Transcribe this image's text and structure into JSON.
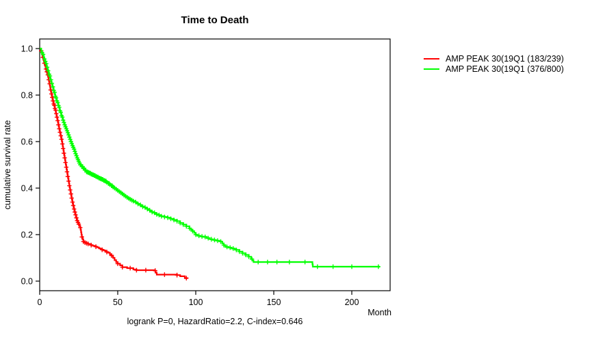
{
  "chart_data": {
    "type": "line",
    "subtype": "kaplan-meier-step",
    "title": "Time to Death",
    "xlabel": "Month",
    "ylabel": "cumulative survival rate",
    "footer": "logrank P=0, HazardRatio=2.2, C-index=0.646",
    "xlim": [
      0,
      225
    ],
    "ylim": [
      0.0,
      1.0
    ],
    "xticks": [
      0,
      50,
      100,
      150,
      200
    ],
    "yticks": [
      0.0,
      0.2,
      0.4,
      0.6,
      0.8,
      1.0
    ],
    "grid": false,
    "legend_position": "right-outside",
    "series": [
      {
        "name": "AMP PEAK 30(19Q1 (183/239)",
        "color": "#ff0000",
        "events_total": "183/239",
        "steps": [
          [
            0,
            1.0
          ],
          [
            0.7,
            0.99
          ],
          [
            1.5,
            0.975
          ],
          [
            2,
            0.962
          ],
          [
            2.5,
            0.95
          ],
          [
            3,
            0.937
          ],
          [
            3.5,
            0.925
          ],
          [
            4,
            0.912
          ],
          [
            4.5,
            0.9
          ],
          [
            5,
            0.887
          ],
          [
            5.5,
            0.875
          ],
          [
            6,
            0.857
          ],
          [
            6.5,
            0.84
          ],
          [
            7,
            0.822
          ],
          [
            7.5,
            0.805
          ],
          [
            8,
            0.79
          ],
          [
            8.5,
            0.775
          ],
          [
            9,
            0.762
          ],
          [
            9.5,
            0.75
          ],
          [
            10,
            0.735
          ],
          [
            10.5,
            0.72
          ],
          [
            11,
            0.705
          ],
          [
            11.5,
            0.69
          ],
          [
            12,
            0.672
          ],
          [
            12.5,
            0.655
          ],
          [
            13,
            0.64
          ],
          [
            13.5,
            0.625
          ],
          [
            14,
            0.61
          ],
          [
            14.5,
            0.59
          ],
          [
            15,
            0.57
          ],
          [
            15.5,
            0.55
          ],
          [
            16,
            0.53
          ],
          [
            16.5,
            0.51
          ],
          [
            17,
            0.49
          ],
          [
            17.5,
            0.47
          ],
          [
            18,
            0.45
          ],
          [
            18.5,
            0.43
          ],
          [
            19,
            0.41
          ],
          [
            19.5,
            0.392
          ],
          [
            20,
            0.375
          ],
          [
            20.5,
            0.357
          ],
          [
            21,
            0.34
          ],
          [
            21.5,
            0.325
          ],
          [
            22,
            0.31
          ],
          [
            22.5,
            0.297
          ],
          [
            23,
            0.285
          ],
          [
            23.5,
            0.272
          ],
          [
            24,
            0.26
          ],
          [
            24.5,
            0.252
          ],
          [
            25,
            0.245
          ],
          [
            25.5,
            0.237
          ],
          [
            26,
            0.23
          ],
          [
            26.5,
            0.21
          ],
          [
            27,
            0.19
          ],
          [
            27.5,
            0.18
          ],
          [
            28,
            0.17
          ],
          [
            29,
            0.166
          ],
          [
            30,
            0.163
          ],
          [
            31,
            0.16
          ],
          [
            32,
            0.158
          ],
          [
            33,
            0.155
          ],
          [
            34,
            0.152
          ],
          [
            35,
            0.15
          ],
          [
            36,
            0.148
          ],
          [
            37,
            0.145
          ],
          [
            38,
            0.141
          ],
          [
            39,
            0.138
          ],
          [
            40,
            0.135
          ],
          [
            41,
            0.132
          ],
          [
            42,
            0.128
          ],
          [
            43,
            0.125
          ],
          [
            44,
            0.122
          ],
          [
            45,
            0.115
          ],
          [
            46,
            0.11
          ],
          [
            47,
            0.1
          ],
          [
            48,
            0.09
          ],
          [
            49,
            0.082
          ],
          [
            50,
            0.075
          ],
          [
            51.5,
            0.068
          ],
          [
            53,
            0.06
          ],
          [
            56,
            0.056
          ],
          [
            60,
            0.05
          ],
          [
            62,
            0.047
          ],
          [
            73.5,
            0.045
          ],
          [
            75,
            0.028
          ],
          [
            88,
            0.026
          ],
          [
            90,
            0.021
          ],
          [
            93,
            0.013
          ],
          [
            95,
            0.013
          ]
        ],
        "censors": [
          1,
          2,
          3,
          4,
          4.6,
          5.2,
          5.8,
          6.4,
          7,
          7.5,
          8,
          8.5,
          9,
          9.4,
          9.8,
          10.2,
          10.6,
          11,
          11.5,
          12,
          12.5,
          13,
          13.5,
          14,
          14.5,
          15,
          15.5,
          16,
          16.5,
          17,
          17.5,
          18,
          18.5,
          19,
          19.5,
          20,
          20.5,
          21,
          21.5,
          22,
          22.5,
          23,
          23.5,
          24,
          24.5,
          25,
          26,
          27,
          28,
          29,
          30,
          31,
          33,
          36,
          40,
          43,
          46,
          50,
          53,
          58,
          62,
          68,
          74,
          80,
          88,
          94
        ]
      },
      {
        "name": "AMP PEAK 30(19Q1 (376/800)",
        "color": "#00ff00",
        "events_total": "376/800",
        "steps": [
          [
            0,
            1.0
          ],
          [
            1,
            0.99
          ],
          [
            2,
            0.975
          ],
          [
            3,
            0.955
          ],
          [
            4,
            0.935
          ],
          [
            5,
            0.912
          ],
          [
            6,
            0.89
          ],
          [
            7,
            0.866
          ],
          [
            8,
            0.843
          ],
          [
            9,
            0.82
          ],
          [
            10,
            0.795
          ],
          [
            11,
            0.775
          ],
          [
            12,
            0.755
          ],
          [
            13,
            0.733
          ],
          [
            14,
            0.712
          ],
          [
            15,
            0.692
          ],
          [
            16,
            0.672
          ],
          [
            17,
            0.655
          ],
          [
            18,
            0.638
          ],
          [
            19,
            0.619
          ],
          [
            20,
            0.6
          ],
          [
            21,
            0.583
          ],
          [
            22,
            0.567
          ],
          [
            23,
            0.548
          ],
          [
            24,
            0.53
          ],
          [
            25,
            0.515
          ],
          [
            26,
            0.5
          ],
          [
            27,
            0.492
          ],
          [
            28,
            0.485
          ],
          [
            29,
            0.477
          ],
          [
            30,
            0.47
          ],
          [
            31,
            0.467
          ],
          [
            32,
            0.464
          ],
          [
            33,
            0.46
          ],
          [
            34,
            0.457
          ],
          [
            35,
            0.454
          ],
          [
            36,
            0.45
          ],
          [
            37,
            0.447
          ],
          [
            38,
            0.443
          ],
          [
            39,
            0.44
          ],
          [
            40,
            0.437
          ],
          [
            41,
            0.433
          ],
          [
            42,
            0.43
          ],
          [
            43,
            0.425
          ],
          [
            44,
            0.42
          ],
          [
            45,
            0.415
          ],
          [
            46,
            0.41
          ],
          [
            47,
            0.405
          ],
          [
            48,
            0.4
          ],
          [
            49,
            0.395
          ],
          [
            50,
            0.39
          ],
          [
            51,
            0.385
          ],
          [
            52,
            0.38
          ],
          [
            53,
            0.375
          ],
          [
            54,
            0.37
          ],
          [
            55,
            0.365
          ],
          [
            56,
            0.36
          ],
          [
            57,
            0.356
          ],
          [
            58,
            0.352
          ],
          [
            59,
            0.348
          ],
          [
            60,
            0.344
          ],
          [
            61,
            0.34
          ],
          [
            62,
            0.336
          ],
          [
            63,
            0.332
          ],
          [
            64,
            0.328
          ],
          [
            65,
            0.324
          ],
          [
            66,
            0.32
          ],
          [
            67,
            0.317
          ],
          [
            68,
            0.313
          ],
          [
            69,
            0.31
          ],
          [
            70,
            0.305
          ],
          [
            71,
            0.3
          ],
          [
            72,
            0.297
          ],
          [
            73,
            0.294
          ],
          [
            74,
            0.29
          ],
          [
            75,
            0.287
          ],
          [
            76,
            0.284
          ],
          [
            77,
            0.281
          ],
          [
            78,
            0.279
          ],
          [
            80,
            0.276
          ],
          [
            82,
            0.273
          ],
          [
            84,
            0.268
          ],
          [
            86,
            0.263
          ],
          [
            88,
            0.258
          ],
          [
            90,
            0.25
          ],
          [
            92,
            0.243
          ],
          [
            94,
            0.236
          ],
          [
            96,
            0.227
          ],
          [
            98,
            0.215
          ],
          [
            100,
            0.2
          ],
          [
            101,
            0.195
          ],
          [
            103,
            0.192
          ],
          [
            105,
            0.19
          ],
          [
            107,
            0.185
          ],
          [
            109,
            0.18
          ],
          [
            111,
            0.177
          ],
          [
            113,
            0.174
          ],
          [
            115,
            0.172
          ],
          [
            116,
            0.17
          ],
          [
            118,
            0.155
          ],
          [
            119,
            0.147
          ],
          [
            121,
            0.144
          ],
          [
            123,
            0.14
          ],
          [
            125,
            0.137
          ],
          [
            126,
            0.134
          ],
          [
            128,
            0.127
          ],
          [
            130,
            0.12
          ],
          [
            132,
            0.113
          ],
          [
            134,
            0.105
          ],
          [
            135.5,
            0.095
          ],
          [
            137,
            0.082
          ],
          [
            174.6,
            0.082
          ],
          [
            175,
            0.062
          ],
          [
            218,
            0.062
          ]
        ],
        "censors": [
          1.5,
          2.2,
          3,
          3.6,
          4.2,
          4.8,
          5.4,
          6,
          6.6,
          7.2,
          7.8,
          8.4,
          9,
          9.5,
          10,
          10.5,
          11,
          11.5,
          12,
          12.5,
          13,
          13.5,
          14,
          14.5,
          15,
          15.5,
          16,
          16.5,
          17,
          17.5,
          18,
          18.5,
          19,
          19.5,
          20,
          20.5,
          21,
          21.5,
          22,
          22.5,
          23,
          23.5,
          24,
          24.5,
          25,
          25.5,
          26,
          26.5,
          27,
          27.5,
          28,
          28.5,
          29,
          29.5,
          30,
          30.5,
          31,
          31.5,
          32,
          32.5,
          33,
          33.5,
          34,
          34.5,
          35,
          35.5,
          36,
          36.5,
          37,
          37.5,
          38,
          38.5,
          39,
          39.5,
          40,
          40.5,
          41,
          41.5,
          42,
          42.5,
          43,
          44,
          44.5,
          45,
          46,
          46.5,
          47,
          48,
          49,
          50,
          51,
          52,
          53,
          54,
          55,
          56,
          57,
          58,
          59,
          60,
          61.5,
          63,
          64.5,
          66,
          67.5,
          69,
          70.5,
          72,
          73.5,
          75,
          76.5,
          78,
          80,
          82,
          84,
          86,
          88,
          90,
          92,
          94,
          96,
          98,
          100,
          102,
          104,
          106,
          108,
          110,
          112,
          114,
          116,
          118,
          120,
          122,
          124,
          126,
          128,
          130,
          132,
          134,
          136,
          140,
          146,
          152,
          160,
          170,
          178,
          188,
          200,
          217
        ]
      }
    ]
  }
}
